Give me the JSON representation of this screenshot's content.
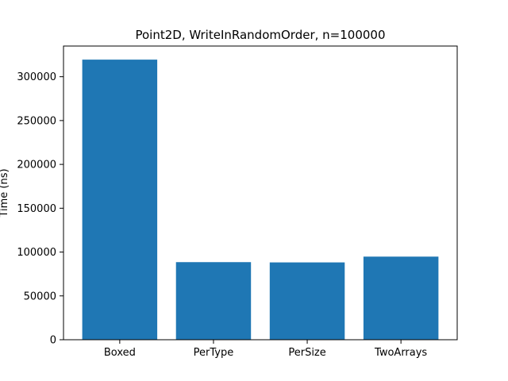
{
  "chart_data": {
    "type": "bar",
    "title": "Point2D, WriteInRandomOrder, n=100000",
    "xlabel": "",
    "ylabel": "Time (ns)",
    "categories": [
      "Boxed",
      "PerType",
      "PerSize",
      "TwoArrays"
    ],
    "values": [
      319500,
      88500,
      88200,
      94800
    ],
    "ylim": [
      0,
      335000
    ],
    "yticks": [
      0,
      50000,
      100000,
      150000,
      200000,
      250000,
      300000
    ],
    "ytick_labels": [
      "0",
      "50000",
      "100000",
      "150000",
      "200000",
      "250000",
      "300000"
    ],
    "grid": false,
    "legend": "none",
    "bar_color": "#1f77b4"
  }
}
